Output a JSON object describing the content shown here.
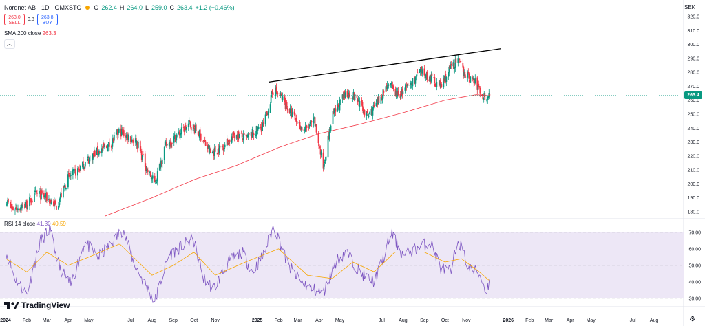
{
  "legend": {
    "symbol": "Nordnet AB · 1D · OMXSTO",
    "open_key": "O",
    "open": "262.4",
    "high_key": "H",
    "high": "264.0",
    "low_key": "L",
    "low": "259.0",
    "close_key": "C",
    "close": "263.4",
    "change": "+1.2 (+0.46%)"
  },
  "trade": {
    "sell_price": "263.0",
    "sell_label": "SELL",
    "spread": "0.8",
    "buy_price": "263.8",
    "buy_label": "BUY"
  },
  "sma": {
    "label": "SMA 200 close",
    "value": "263.3"
  },
  "rsi": {
    "label": "RSI 14 close",
    "value": "41.30",
    "ma_value": "40.59"
  },
  "currency": "SEK",
  "last_price_tag": "263.4",
  "brand": "TradingView",
  "colors": {
    "up": "#089981",
    "down": "#f23645",
    "sma": "#f23645",
    "rsi": "#7e57c2",
    "rsi_ma": "#f7a600",
    "trendline": "#000000",
    "rsi_band": "#ede7f6"
  },
  "chart_data": [
    {
      "type": "candlestick",
      "title": "Nordnet AB · 1D · OMXSTO",
      "ylim": [
        176,
        324
      ],
      "yticks": [
        "320.0",
        "310.0",
        "300.0",
        "290.0",
        "280.0",
        "270.0",
        "260.0",
        "250.0",
        "240.0",
        "230.0",
        "220.0",
        "210.0",
        "200.0",
        "190.0",
        "180.0"
      ],
      "x_ticks": [
        "2024",
        "Feb",
        "Mar",
        "Apr",
        "May",
        "Jul",
        "Aug",
        "Sep",
        "Oct",
        "Nov",
        "2025",
        "Feb",
        "Mar",
        "Apr",
        "May",
        "Jul",
        "Aug",
        "Sep",
        "Oct",
        "Nov",
        "2026",
        "Feb",
        "Mar",
        "Apr",
        "May",
        "Jul",
        "Aug"
      ],
      "price_anchors": [
        {
          "date": "2024-01-02",
          "price": 188
        },
        {
          "date": "2024-01-10",
          "price": 182
        },
        {
          "date": "2024-02-01",
          "price": 185
        },
        {
          "date": "2024-02-15",
          "price": 193
        },
        {
          "date": "2024-03-01",
          "price": 190
        },
        {
          "date": "2024-03-15",
          "price": 184
        },
        {
          "date": "2024-04-01",
          "price": 204
        },
        {
          "date": "2024-04-20",
          "price": 212
        },
        {
          "date": "2024-05-10",
          "price": 222
        },
        {
          "date": "2024-06-01",
          "price": 228
        },
        {
          "date": "2024-06-15",
          "price": 238
        },
        {
          "date": "2024-07-10",
          "price": 230
        },
        {
          "date": "2024-07-25",
          "price": 210
        },
        {
          "date": "2024-08-05",
          "price": 200
        },
        {
          "date": "2024-08-20",
          "price": 227
        },
        {
          "date": "2024-09-10",
          "price": 236
        },
        {
          "date": "2024-09-25",
          "price": 243
        },
        {
          "date": "2024-10-10",
          "price": 235
        },
        {
          "date": "2024-10-25",
          "price": 222
        },
        {
          "date": "2024-11-10",
          "price": 226
        },
        {
          "date": "2024-12-01",
          "price": 236
        },
        {
          "date": "2024-12-15",
          "price": 232
        },
        {
          "date": "2025-01-10",
          "price": 242
        },
        {
          "date": "2025-01-25",
          "price": 268
        },
        {
          "date": "2025-02-05",
          "price": 262
        },
        {
          "date": "2025-02-20",
          "price": 250
        },
        {
          "date": "2025-03-10",
          "price": 238
        },
        {
          "date": "2025-03-25",
          "price": 245
        },
        {
          "date": "2025-04-07",
          "price": 212
        },
        {
          "date": "2025-04-20",
          "price": 248
        },
        {
          "date": "2025-05-10",
          "price": 265
        },
        {
          "date": "2025-05-25",
          "price": 262
        },
        {
          "date": "2025-06-10",
          "price": 248
        },
        {
          "date": "2025-06-25",
          "price": 258
        },
        {
          "date": "2025-07-10",
          "price": 272
        },
        {
          "date": "2025-07-25",
          "price": 263
        },
        {
          "date": "2025-08-10",
          "price": 270
        },
        {
          "date": "2025-08-25",
          "price": 280
        },
        {
          "date": "2025-09-10",
          "price": 276
        },
        {
          "date": "2025-09-25",
          "price": 270
        },
        {
          "date": "2025-10-10",
          "price": 284
        },
        {
          "date": "2025-10-20",
          "price": 288
        },
        {
          "date": "2025-11-01",
          "price": 278
        },
        {
          "date": "2025-11-15",
          "price": 272
        },
        {
          "date": "2025-11-25",
          "price": 263
        },
        {
          "date": "2025-12-05",
          "price": 263.4
        }
      ],
      "sma200_anchors": [
        {
          "date": "2024-05-25",
          "price": 177
        },
        {
          "date": "2024-08-01",
          "price": 190
        },
        {
          "date": "2024-10-01",
          "price": 203
        },
        {
          "date": "2024-12-01",
          "price": 213
        },
        {
          "date": "2025-02-01",
          "price": 226
        },
        {
          "date": "2025-04-01",
          "price": 236
        },
        {
          "date": "2025-06-01",
          "price": 243
        },
        {
          "date": "2025-08-01",
          "price": 251
        },
        {
          "date": "2025-10-01",
          "price": 260
        },
        {
          "date": "2025-11-15",
          "price": 264
        },
        {
          "date": "2025-12-05",
          "price": 263.3
        }
      ],
      "trendline": [
        {
          "date": "2025-01-18",
          "price": 273
        },
        {
          "date": "2025-12-21",
          "price": 297
        }
      ]
    },
    {
      "type": "line",
      "title": "RSI 14 close",
      "ylim": [
        27,
        72
      ],
      "yticks": [
        "70.00",
        "60.00",
        "50.00",
        "40.00",
        "30.00"
      ],
      "band": [
        30,
        70
      ],
      "midline": 50,
      "rsi_anchors": [
        {
          "date": "2024-01-02",
          "v": 58
        },
        {
          "date": "2024-01-15",
          "v": 42
        },
        {
          "date": "2024-02-01",
          "v": 33
        },
        {
          "date": "2024-02-20",
          "v": 64
        },
        {
          "date": "2024-03-05",
          "v": 72
        },
        {
          "date": "2024-03-20",
          "v": 48
        },
        {
          "date": "2024-04-05",
          "v": 38
        },
        {
          "date": "2024-04-25",
          "v": 64
        },
        {
          "date": "2024-05-15",
          "v": 55
        },
        {
          "date": "2024-06-01",
          "v": 62
        },
        {
          "date": "2024-06-20",
          "v": 72
        },
        {
          "date": "2024-07-05",
          "v": 52
        },
        {
          "date": "2024-07-20",
          "v": 40
        },
        {
          "date": "2024-08-05",
          "v": 28
        },
        {
          "date": "2024-08-25",
          "v": 56
        },
        {
          "date": "2024-09-15",
          "v": 62
        },
        {
          "date": "2024-09-30",
          "v": 66
        },
        {
          "date": "2024-10-15",
          "v": 42
        },
        {
          "date": "2024-10-30",
          "v": 36
        },
        {
          "date": "2024-11-20",
          "v": 52
        },
        {
          "date": "2024-12-10",
          "v": 58
        },
        {
          "date": "2024-12-25",
          "v": 46
        },
        {
          "date": "2025-01-10",
          "v": 56
        },
        {
          "date": "2025-01-25",
          "v": 74
        },
        {
          "date": "2025-02-15",
          "v": 50
        },
        {
          "date": "2025-03-05",
          "v": 40
        },
        {
          "date": "2025-03-20",
          "v": 36
        },
        {
          "date": "2025-04-07",
          "v": 33
        },
        {
          "date": "2025-04-25",
          "v": 52
        },
        {
          "date": "2025-05-10",
          "v": 58
        },
        {
          "date": "2025-06-01",
          "v": 45
        },
        {
          "date": "2025-06-20",
          "v": 40
        },
        {
          "date": "2025-07-05",
          "v": 56
        },
        {
          "date": "2025-07-15",
          "v": 70
        },
        {
          "date": "2025-08-01",
          "v": 56
        },
        {
          "date": "2025-08-20",
          "v": 60
        },
        {
          "date": "2025-09-10",
          "v": 64
        },
        {
          "date": "2025-09-25",
          "v": 48
        },
        {
          "date": "2025-10-10",
          "v": 46
        },
        {
          "date": "2025-10-20",
          "v": 66
        },
        {
          "date": "2025-11-05",
          "v": 48
        },
        {
          "date": "2025-11-20",
          "v": 45
        },
        {
          "date": "2025-11-30",
          "v": 34
        },
        {
          "date": "2025-12-05",
          "v": 41.3
        }
      ],
      "rsi_ma_anchors": [
        {
          "date": "2024-01-02",
          "v": 54
        },
        {
          "date": "2024-02-01",
          "v": 46
        },
        {
          "date": "2024-03-01",
          "v": 58
        },
        {
          "date": "2024-04-01",
          "v": 50
        },
        {
          "date": "2024-05-01",
          "v": 55
        },
        {
          "date": "2024-06-15",
          "v": 63
        },
        {
          "date": "2024-08-01",
          "v": 44
        },
        {
          "date": "2024-09-01",
          "v": 50
        },
        {
          "date": "2024-10-01",
          "v": 58
        },
        {
          "date": "2024-11-01",
          "v": 44
        },
        {
          "date": "2024-12-15",
          "v": 52
        },
        {
          "date": "2025-02-01",
          "v": 60
        },
        {
          "date": "2025-03-15",
          "v": 44
        },
        {
          "date": "2025-04-20",
          "v": 42
        },
        {
          "date": "2025-05-20",
          "v": 52
        },
        {
          "date": "2025-06-20",
          "v": 46
        },
        {
          "date": "2025-07-20",
          "v": 58
        },
        {
          "date": "2025-09-01",
          "v": 58
        },
        {
          "date": "2025-10-01",
          "v": 52
        },
        {
          "date": "2025-10-25",
          "v": 54
        },
        {
          "date": "2025-11-20",
          "v": 46
        },
        {
          "date": "2025-12-05",
          "v": 40.59
        }
      ]
    }
  ]
}
